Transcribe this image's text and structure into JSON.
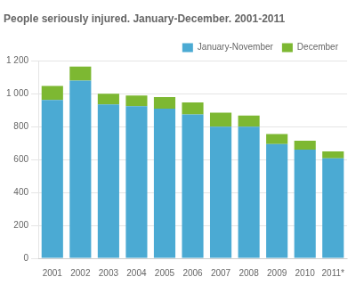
{
  "chart_data": {
    "type": "bar",
    "title": "People seriously injured. January-December. 2001-2011",
    "categories": [
      "2001",
      "2002",
      "2003",
      "2004",
      "2005",
      "2006",
      "2007",
      "2008",
      "2009",
      "2010",
      "2011*"
    ],
    "series": [
      {
        "name": "January-November",
        "color": "#4baad3",
        "values": [
          963,
          1080,
          935,
          925,
          910,
          875,
          800,
          800,
          695,
          660,
          608
        ]
      },
      {
        "name": "December",
        "color": "#7db832",
        "values": [
          85,
          85,
          65,
          65,
          70,
          72,
          85,
          68,
          60,
          55,
          42
        ]
      }
    ],
    "ylim": [
      0,
      1200
    ],
    "yticks": [
      0,
      200,
      400,
      600,
      800,
      {
        "value": 1000,
        "label": "1 000"
      },
      {
        "value": 1200,
        "label": "1 200"
      }
    ],
    "grid": true,
    "stacked": true,
    "legend": "upper right"
  }
}
